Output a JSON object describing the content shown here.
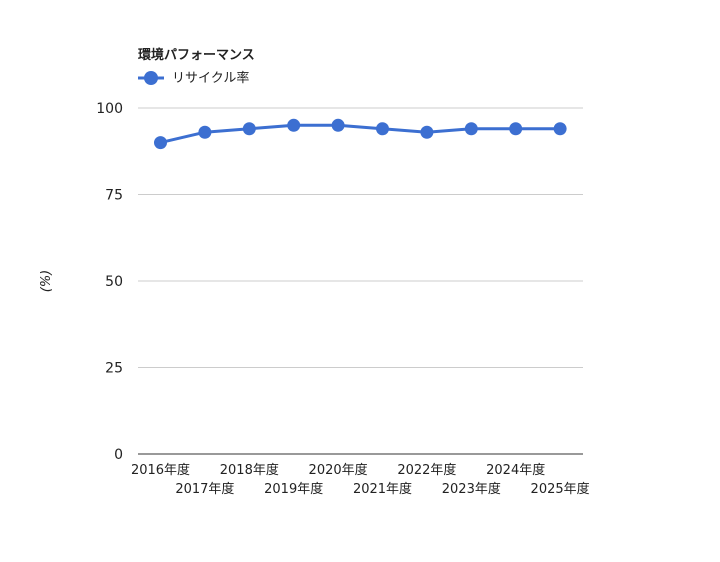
{
  "chart_data": {
    "type": "line",
    "title": "環境パフォーマンス",
    "ylabel": "(%)",
    "xlabel": "",
    "categories": [
      "2016年度",
      "2017年度",
      "2018年度",
      "2019年度",
      "2020年度",
      "2021年度",
      "2022年度",
      "2023年度",
      "2024年度",
      "2025年度"
    ],
    "series": [
      {
        "name": "リサイクル率",
        "values": [
          90,
          93,
          94,
          95,
          95,
          94,
          93,
          94,
          94,
          94
        ],
        "color": "#3c6fd1"
      }
    ],
    "ylim": [
      0,
      100
    ],
    "yticks": [
      0,
      25,
      50,
      75,
      100
    ],
    "grid": true,
    "legend": "top-left"
  }
}
